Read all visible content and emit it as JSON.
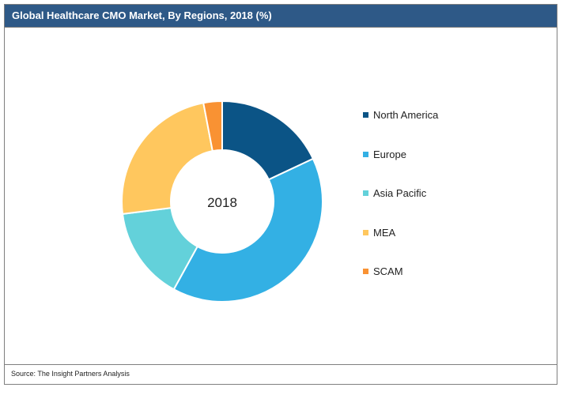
{
  "header": {
    "title": "Global Healthcare CMO Market, By Regions, 2018 (%)"
  },
  "footer": {
    "source": "Source: The Insight Partners Analysis"
  },
  "chart_data": {
    "type": "pie",
    "style": "donut",
    "center_label": "2018",
    "categories": [
      "North America",
      "Europe",
      "Asia Pacific",
      "MEA",
      "SCAM"
    ],
    "values": [
      18,
      40,
      15,
      24,
      3
    ],
    "colors": [
      "#0b5486",
      "#33b0e4",
      "#63d1da",
      "#ffc75e",
      "#f99233"
    ],
    "legend_position": "right"
  }
}
